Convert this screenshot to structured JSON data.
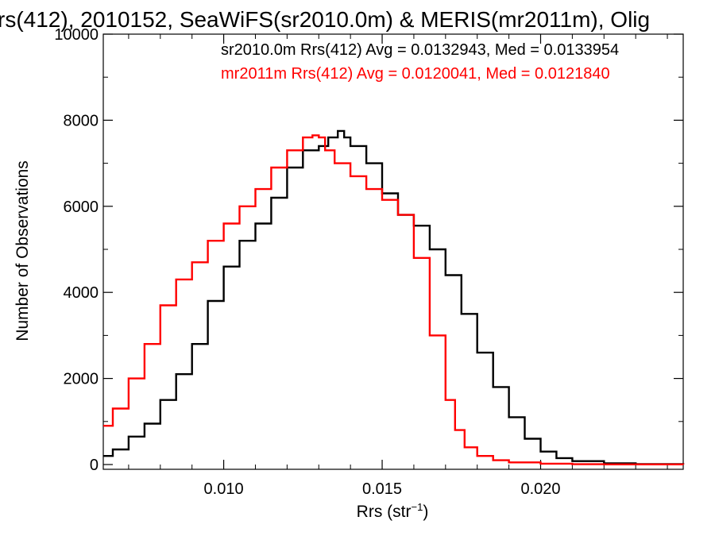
{
  "chart_data": {
    "type": "line",
    "title": "rs(412), 2010152, SeaWiFS(sr2010.0m) & MERIS(mr2011m), Olig",
    "xlabel_main": "Rrs (str",
    "xlabel_sup": "−1",
    "xlabel_end": ")",
    "ylabel": "Number of Observations",
    "xlim": [
      0.0062,
      0.0245
    ],
    "ylim": [
      0,
      10000
    ],
    "x_ticks": [
      0.01,
      0.015,
      0.02
    ],
    "x_tick_labels": [
      "0.010",
      "0.015",
      "0.020"
    ],
    "y_ticks": [
      0,
      2000,
      4000,
      6000,
      8000,
      10000
    ],
    "y_tick_labels": [
      "0",
      "2000",
      "4000",
      "6000",
      "8000",
      "10000"
    ],
    "grid": false,
    "legend_position": "top-right",
    "series": [
      {
        "name": "sr2010.0m Rrs(412) Avg = 0.0132943, Med = 0.0133954",
        "color": "#000000",
        "x": [
          0.0062,
          0.0065,
          0.007,
          0.0075,
          0.008,
          0.0085,
          0.009,
          0.0095,
          0.01,
          0.0105,
          0.011,
          0.0115,
          0.012,
          0.0125,
          0.013,
          0.0133,
          0.0136,
          0.0138,
          0.014,
          0.0145,
          0.015,
          0.0155,
          0.016,
          0.0165,
          0.017,
          0.0175,
          0.018,
          0.0185,
          0.019,
          0.0195,
          0.02,
          0.0205,
          0.021,
          0.022,
          0.023,
          0.0245
        ],
        "y": [
          200,
          350,
          650,
          950,
          1500,
          2100,
          2800,
          3800,
          4600,
          5200,
          5600,
          6200,
          6900,
          7300,
          7400,
          7600,
          7750,
          7600,
          7400,
          7000,
          6300,
          5800,
          5550,
          5000,
          4400,
          3500,
          2600,
          1800,
          1100,
          600,
          300,
          150,
          80,
          30,
          10,
          5
        ]
      },
      {
        "name": "mr2011m Rrs(412) Avg = 0.0120041, Med = 0.0121840",
        "color": "#ff0000",
        "x": [
          0.0062,
          0.0065,
          0.007,
          0.0075,
          0.008,
          0.0085,
          0.009,
          0.0095,
          0.01,
          0.0105,
          0.011,
          0.0115,
          0.012,
          0.0125,
          0.0128,
          0.013,
          0.0132,
          0.0135,
          0.014,
          0.0145,
          0.015,
          0.0155,
          0.016,
          0.0165,
          0.017,
          0.0173,
          0.0176,
          0.018,
          0.0185,
          0.019,
          0.02,
          0.021,
          0.022,
          0.0245
        ],
        "y": [
          900,
          1300,
          2000,
          2800,
          3700,
          4300,
          4700,
          5200,
          5600,
          6000,
          6400,
          6900,
          7300,
          7600,
          7650,
          7600,
          7300,
          7000,
          6700,
          6400,
          6150,
          5800,
          4800,
          3000,
          1500,
          800,
          400,
          200,
          100,
          50,
          20,
          8,
          3,
          0
        ]
      }
    ]
  }
}
